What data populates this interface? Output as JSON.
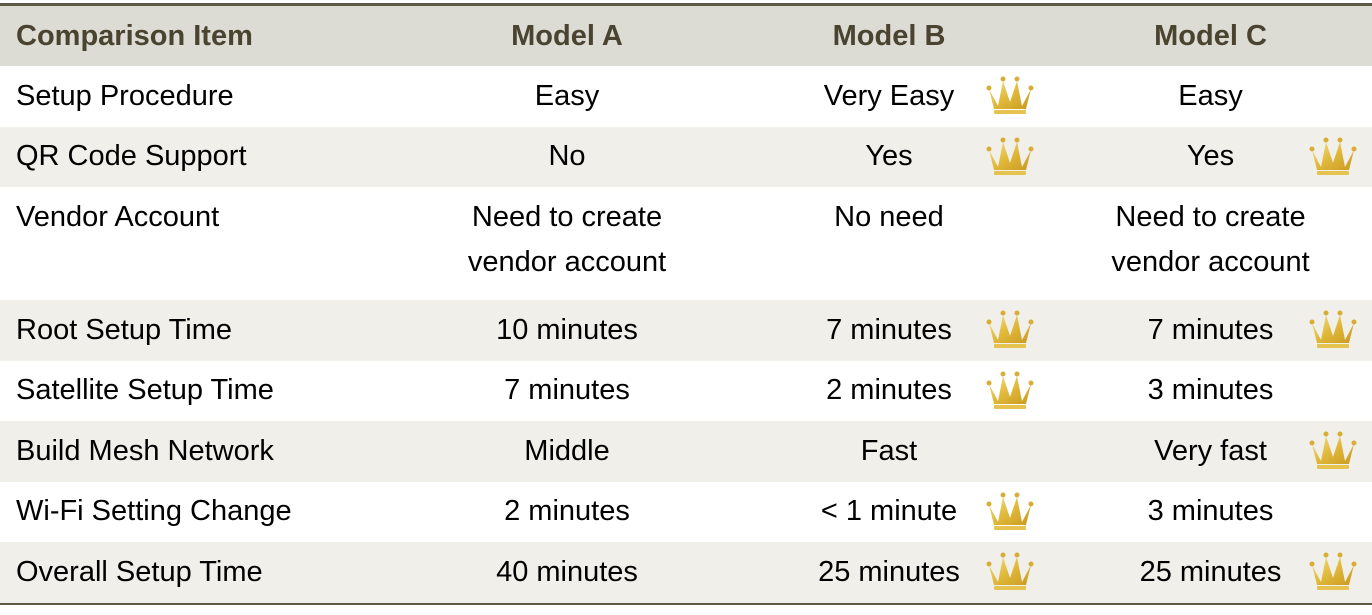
{
  "header": [
    "Comparison Item",
    "Model A",
    "Model B",
    "Model C"
  ],
  "rows": [
    {
      "item": "Setup Procedure",
      "a": "Easy",
      "b": "Very Easy",
      "c": "Easy",
      "crown": [
        false,
        true,
        false
      ]
    },
    {
      "item": "QR Code Support",
      "a": "No",
      "b": "Yes",
      "c": "Yes",
      "crown": [
        false,
        true,
        true
      ]
    },
    {
      "item": "Vendor Account",
      "a": "Need to create\nvendor account",
      "b": "No need",
      "c": "Need to create\nvendor account",
      "crown": [
        false,
        false,
        false
      ]
    },
    {
      "item": "Root Setup Time",
      "a": "10 minutes",
      "b": "7 minutes",
      "c": "7 minutes",
      "crown": [
        false,
        true,
        true
      ]
    },
    {
      "item": "Satellite Setup Time",
      "a": "7 minutes",
      "b": "2 minutes",
      "c": "3 minutes",
      "crown": [
        false,
        true,
        false
      ]
    },
    {
      "item": "Build Mesh Network",
      "a": "Middle",
      "b": "Fast",
      "c": "Very fast",
      "crown": [
        false,
        false,
        true
      ]
    },
    {
      "item": "Wi-Fi Setting Change",
      "a": "2 minutes",
      "b": "< 1 minute",
      "c": "3 minutes",
      "crown": [
        false,
        true,
        false
      ]
    },
    {
      "item": "Overall Setup Time",
      "a": "40 minutes",
      "b": "25 minutes",
      "c": "25 minutes",
      "crown": [
        false,
        true,
        true
      ]
    }
  ],
  "icons": {
    "winner": "crown-icon"
  },
  "colors": {
    "header_bg": "#dcdcd5",
    "header_text": "#4a4330",
    "alt_row": "#f0efe9",
    "crown_gold": "#e0b83a"
  }
}
